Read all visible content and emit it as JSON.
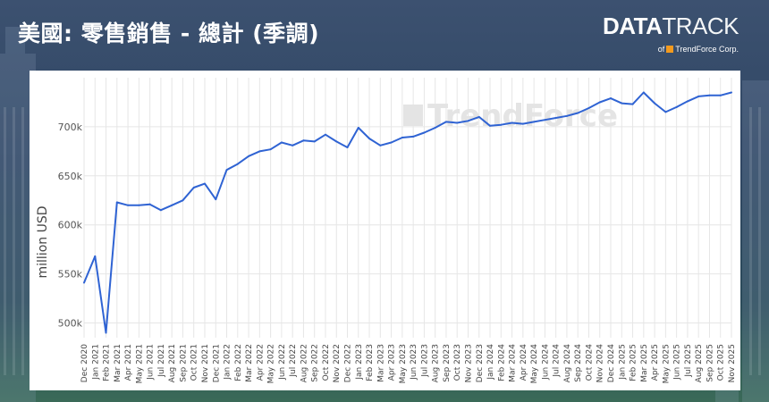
{
  "page": {
    "title": "美國: 零售銷售 - 總計 (季調)"
  },
  "brand": {
    "logo_strong": "DATA",
    "logo_light": "TRACK",
    "sub_prefix": "of",
    "sub_company": "TrendForce Corp."
  },
  "watermark": "TrendForce",
  "colors": {
    "line": "#2f63d3",
    "grid": "#e6e6e6",
    "panel": "#ffffff"
  },
  "chart_data": {
    "type": "line",
    "title": "美國: 零售銷售 - 總計 (季調)",
    "xlabel": "",
    "ylabel": "million USD",
    "ylim": [
      485000,
      750000
    ],
    "yticks": [
      "500k",
      "550k",
      "600k",
      "650k",
      "700k"
    ],
    "ytick_values": [
      500000,
      550000,
      600000,
      650000,
      700000
    ],
    "grid": true,
    "legend": "none",
    "x": [
      "Dec 2020",
      "Jan 2021",
      "Feb 2021",
      "Mar 2021",
      "Apr 2021",
      "May 2021",
      "Jun 2021",
      "Jul 2021",
      "Aug 2021",
      "Sep 2021",
      "Oct 2021",
      "Nov 2021",
      "Dec 2021",
      "Jan 2022",
      "Feb 2022",
      "Mar 2022",
      "Apr 2022",
      "May 2022",
      "Jun 2022",
      "Jul 2022",
      "Aug 2022",
      "Sep 2022",
      "Oct 2022",
      "Nov 2022",
      "Dec 2022",
      "Jan 2023",
      "Feb 2023",
      "Mar 2023",
      "Apr 2023",
      "May 2023",
      "Jun 2023",
      "Jul 2023",
      "Aug 2023",
      "Sep 2023",
      "Oct 2023",
      "Nov 2023",
      "Dec 2023",
      "Jan 2024",
      "Feb 2024",
      "Mar 2024",
      "Apr 2024",
      "May 2024",
      "Jun 2024",
      "Jul 2024",
      "Aug 2024",
      "Sep 2024",
      "Oct 2024",
      "Nov 2024",
      "Dec 2024",
      "Jan 2025",
      "Feb 2025",
      "Mar 2025",
      "Apr 2025",
      "May 2025",
      "Jun 2025",
      "Jul 2025",
      "Aug 2025",
      "Sep 2025",
      "Oct 2025",
      "Nov 2025"
    ],
    "series": [
      {
        "values": [
          541000,
          568000,
          490000,
          623000,
          620000,
          620000,
          621000,
          615000,
          620000,
          625000,
          638000,
          642000,
          626000,
          656000,
          662000,
          670000,
          675000,
          677000,
          684000,
          681000,
          686000,
          685000,
          692000,
          685000,
          679000,
          699000,
          688000,
          681000,
          684000,
          689000,
          690000,
          694000,
          699000,
          705000,
          704000,
          706000,
          710000,
          701000,
          702000,
          704000,
          703000,
          705000,
          707000,
          709000,
          711000,
          714000,
          719000,
          725000,
          729000,
          724000,
          723000,
          735000,
          724000,
          715000,
          720000,
          726000,
          731000,
          732000,
          732000,
          735000
        ]
      }
    ]
  }
}
